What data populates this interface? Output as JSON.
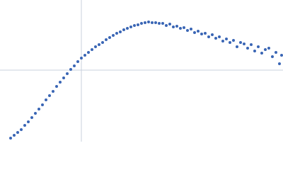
{
  "chart_data": {
    "type": "scatter",
    "color": "#3a66b5",
    "grid": true,
    "xlim": [
      0,
      4
    ],
    "ylim": [
      -1,
      1
    ],
    "xticks": [
      1.15
    ],
    "yticks": [
      0.01
    ],
    "x": [
      0.15,
      0.2,
      0.25,
      0.3,
      0.35,
      0.4,
      0.45,
      0.5,
      0.55,
      0.6,
      0.65,
      0.7,
      0.75,
      0.8,
      0.85,
      0.9,
      0.95,
      1.0,
      1.05,
      1.1,
      1.15,
      1.2,
      1.25,
      1.3,
      1.35,
      1.4,
      1.45,
      1.5,
      1.55,
      1.6,
      1.65,
      1.7,
      1.75,
      1.8,
      1.85,
      1.9,
      1.95,
      2.0,
      2.05,
      2.1,
      2.15,
      2.2,
      2.25,
      2.3,
      2.35,
      2.4,
      2.45,
      2.5,
      2.55,
      2.6,
      2.65,
      2.7,
      2.75,
      2.8,
      2.85,
      2.9,
      2.95,
      3.0,
      3.05,
      3.1,
      3.15,
      3.2,
      3.25,
      3.3,
      3.35,
      3.4,
      3.45,
      3.5,
      3.55,
      3.6,
      3.65,
      3.7,
      3.75,
      3.8,
      3.85,
      3.9,
      3.95,
      3.98
    ],
    "values": [
      -0.95,
      -0.91,
      -0.87,
      -0.83,
      -0.77,
      -0.72,
      -0.66,
      -0.6,
      -0.54,
      -0.48,
      -0.41,
      -0.35,
      -0.29,
      -0.22,
      -0.16,
      -0.1,
      -0.04,
      0.02,
      0.07,
      0.13,
      0.18,
      0.22,
      0.26,
      0.3,
      0.34,
      0.37,
      0.4,
      0.44,
      0.47,
      0.5,
      0.53,
      0.55,
      0.58,
      0.6,
      0.62,
      0.64,
      0.65,
      0.67,
      0.68,
      0.69,
      0.68,
      0.68,
      0.67,
      0.67,
      0.64,
      0.66,
      0.62,
      0.63,
      0.6,
      0.61,
      0.57,
      0.59,
      0.54,
      0.56,
      0.52,
      0.53,
      0.48,
      0.51,
      0.46,
      0.48,
      0.42,
      0.45,
      0.4,
      0.43,
      0.34,
      0.4,
      0.38,
      0.32,
      0.37,
      0.28,
      0.34,
      0.25,
      0.3,
      0.32,
      0.2,
      0.26,
      0.1,
      0.22
    ]
  }
}
